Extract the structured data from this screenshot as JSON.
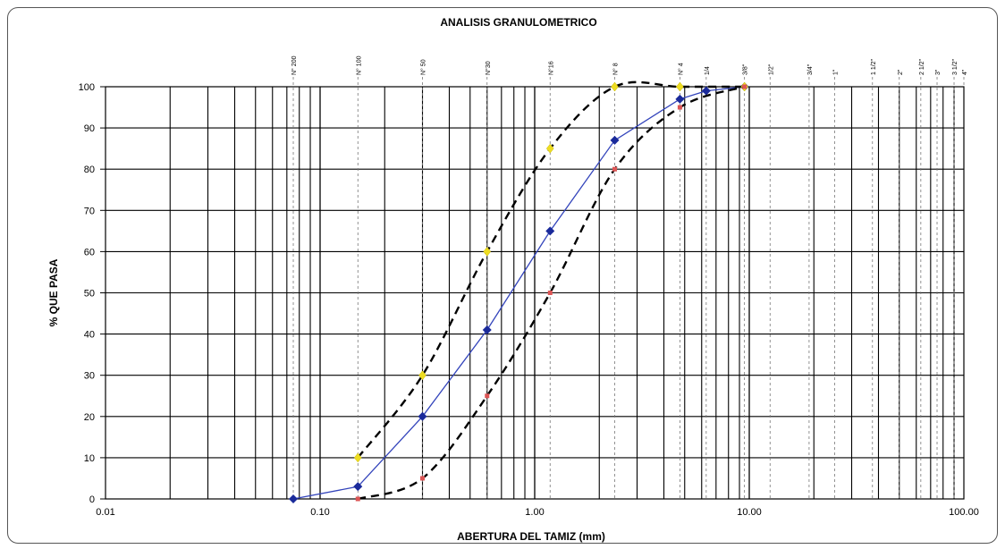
{
  "chart_data": {
    "type": "scatter",
    "title": "ANALISIS GRANULOMETRICO",
    "xlabel": "ABERTURA DEL TAMIZ (mm)",
    "ylabel": "% QUE PASA",
    "x_scale": "log",
    "xlim": [
      0.01,
      100
    ],
    "ylim": [
      0,
      100
    ],
    "x_tick_labels": [
      "0.01",
      "0.10",
      "1.00",
      "10.00",
      "100.00"
    ],
    "x_tick_values": [
      0.01,
      0.1,
      1,
      10,
      100
    ],
    "y_ticks": [
      0,
      10,
      20,
      30,
      40,
      50,
      60,
      70,
      80,
      90,
      100
    ],
    "grid": true,
    "sieves": [
      {
        "label": "N° 200",
        "size": 0.075
      },
      {
        "label": "N° 100",
        "size": 0.15
      },
      {
        "label": "N° 50",
        "size": 0.3
      },
      {
        "label": "N°30",
        "size": 0.6
      },
      {
        "label": "N°16",
        "size": 1.18
      },
      {
        "label": "N° 8",
        "size": 2.36
      },
      {
        "label": "N° 4",
        "size": 4.75
      },
      {
        "label": "1/4",
        "size": 6.3
      },
      {
        "label": "3/8\"",
        "size": 9.5
      },
      {
        "label": "1/2\"",
        "size": 12.5
      },
      {
        "label": "3/4\"",
        "size": 19
      },
      {
        "label": "1\"",
        "size": 25
      },
      {
        "label": "1 1/2\"",
        "size": 37.5
      },
      {
        "label": "2\"",
        "size": 50
      },
      {
        "label": "2 1/2\"",
        "size": 63
      },
      {
        "label": "3\"",
        "size": 75
      },
      {
        "label": "3 1/2\"",
        "size": 90
      },
      {
        "label": "4\"",
        "size": 100
      }
    ],
    "series": [
      {
        "style": "solid-line-diamond-markers",
        "color": "#3344bb",
        "marker_color": "#1a2a9a",
        "x": [
          0.075,
          0.15,
          0.3,
          0.6,
          1.18,
          2.36,
          4.75,
          6.3,
          9.5
        ],
        "y": [
          0,
          3,
          20,
          41,
          65,
          87,
          97,
          99,
          100
        ]
      },
      {
        "style": "dashed-black-curve-yellow-markers",
        "color": "#000000",
        "marker_color": "#eedd22",
        "x": [
          0.15,
          0.3,
          0.6,
          1.18,
          2.36,
          4.75,
          9.5
        ],
        "y": [
          10,
          30,
          60,
          85,
          100,
          100,
          100
        ]
      },
      {
        "style": "dashed-black-curve-red-markers",
        "color": "#000000",
        "marker_color": "#dd5555",
        "x": [
          0.15,
          0.3,
          0.6,
          1.18,
          2.36,
          4.75,
          9.5
        ],
        "y": [
          0,
          5,
          25,
          50,
          80,
          95,
          100
        ]
      }
    ]
  }
}
